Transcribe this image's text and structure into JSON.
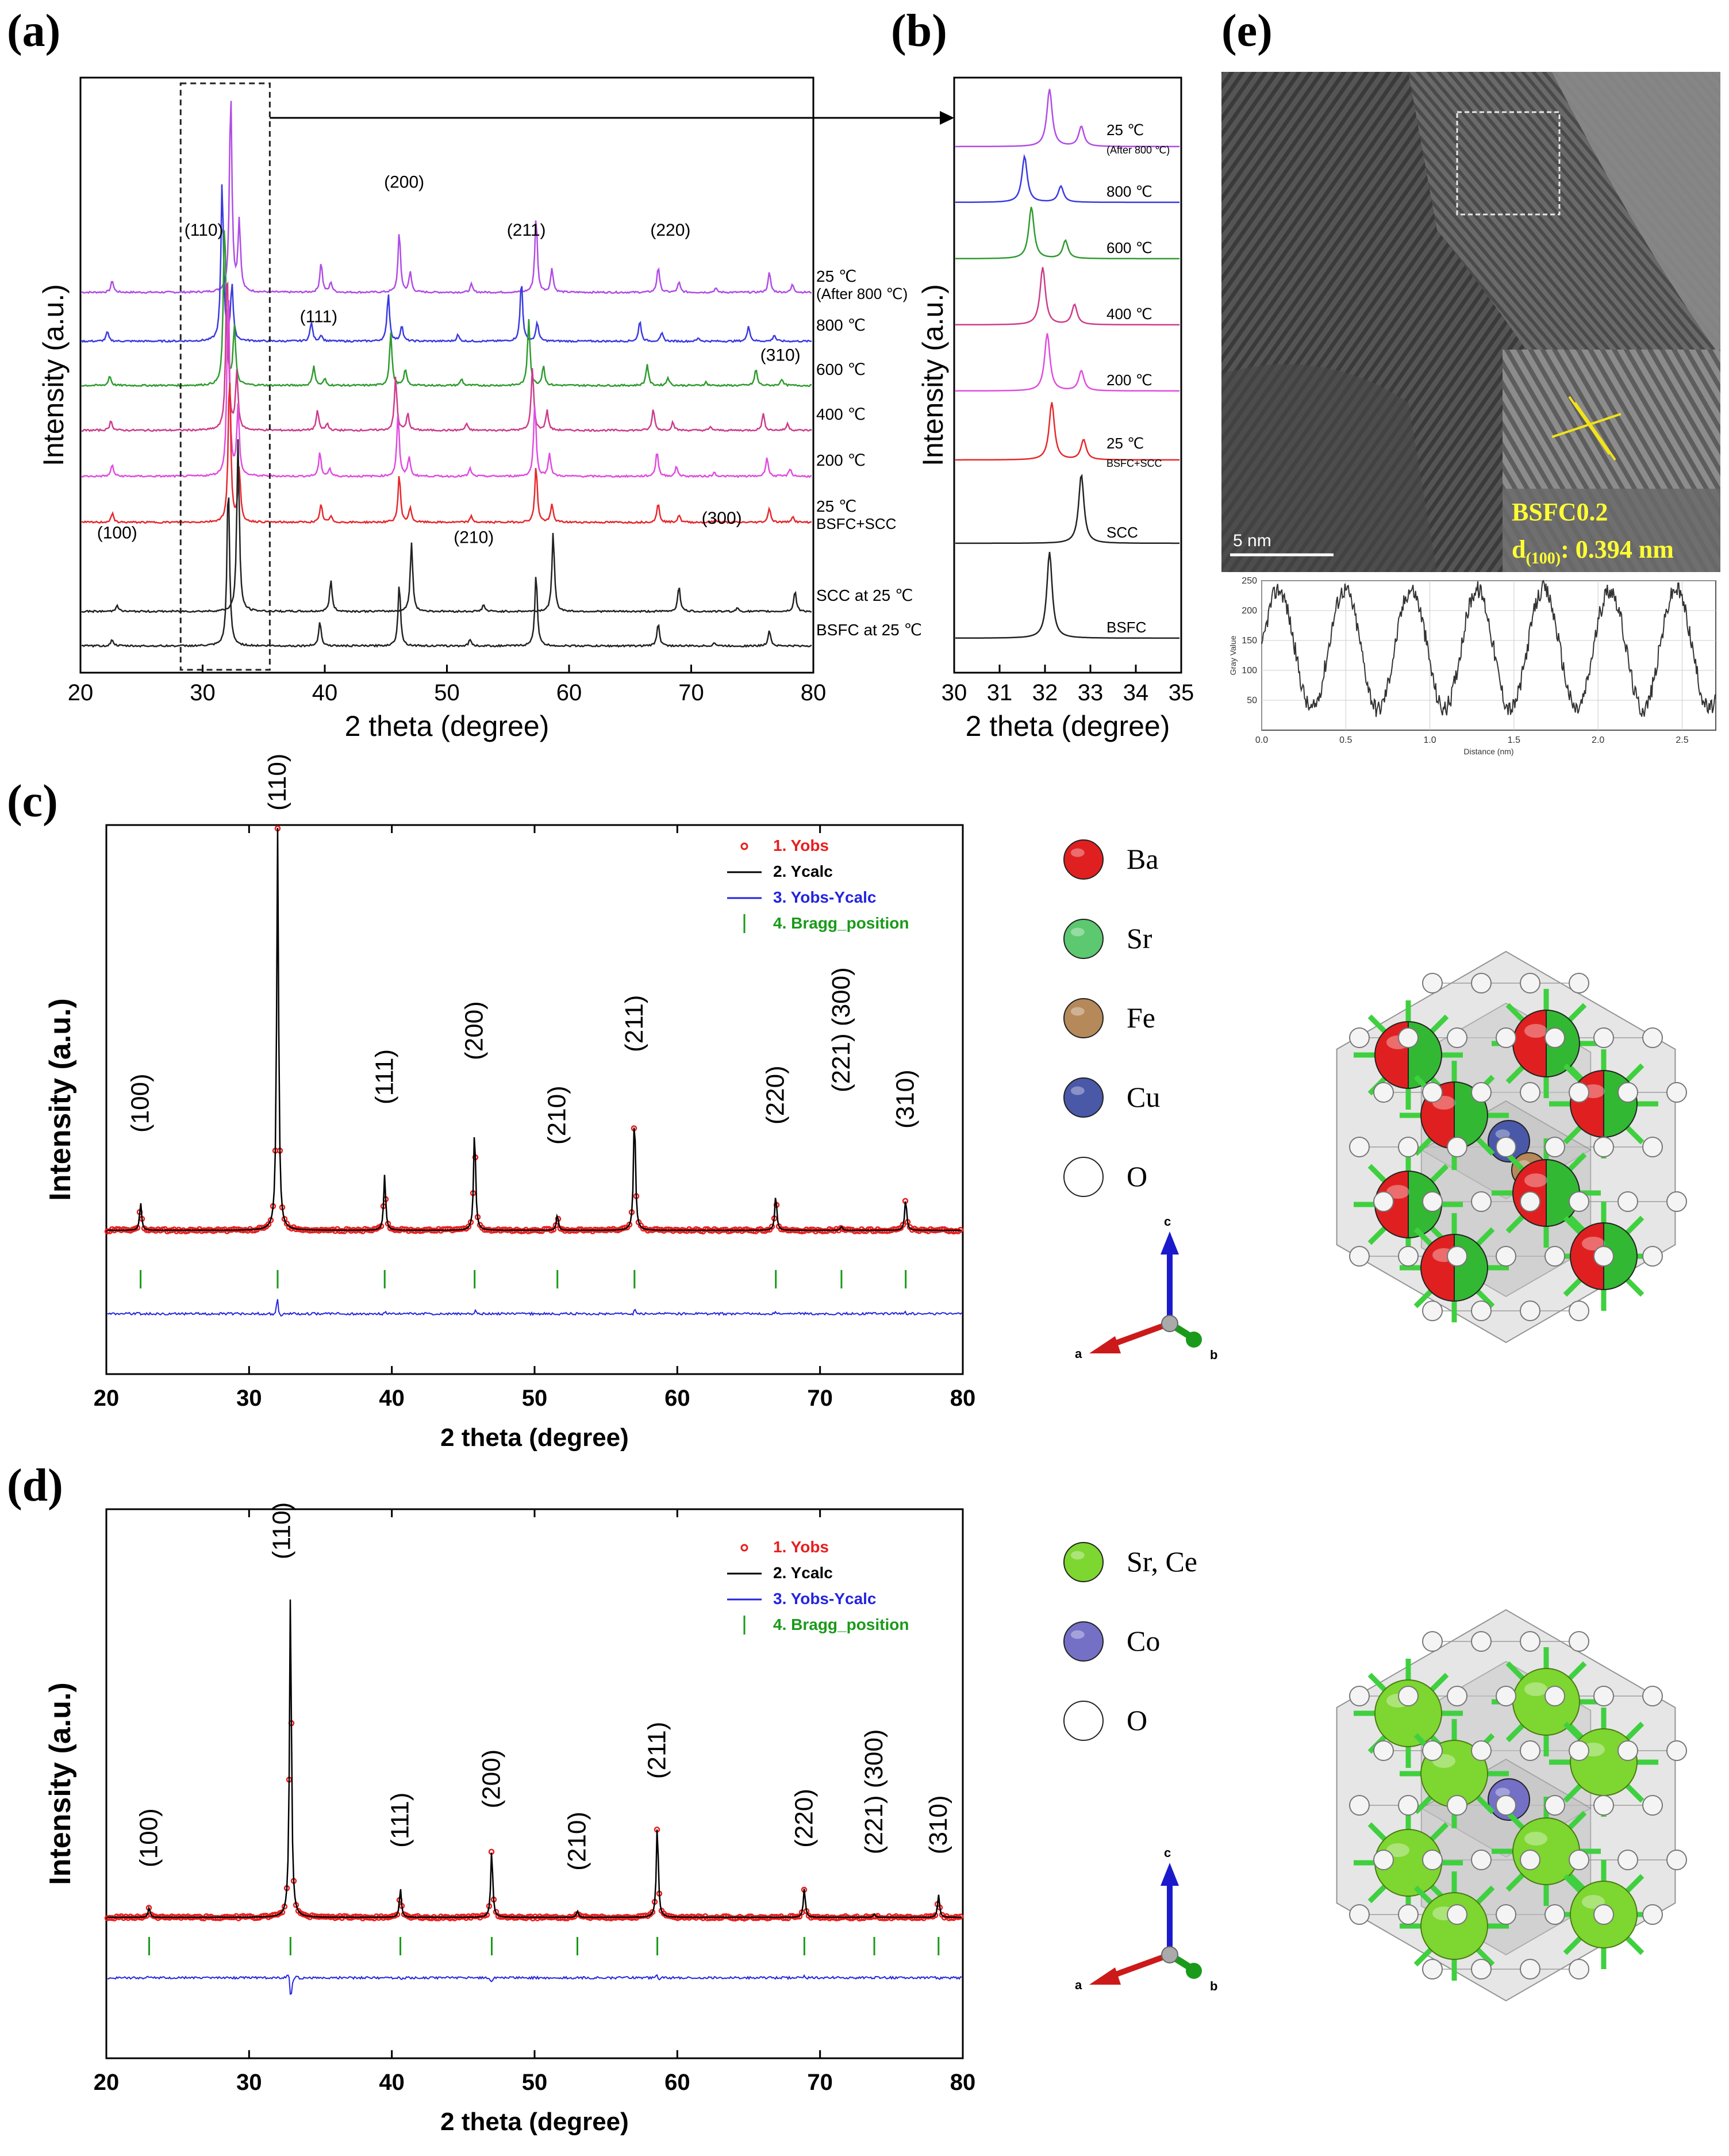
{
  "panel_labels": {
    "a": "(a)",
    "b": "(b)",
    "c": "(c)",
    "d": "(d)",
    "e": "(e)"
  },
  "colors": {
    "purple": "#b04ce6",
    "blue": "#3a3ae0",
    "green": "#2e9b2e",
    "magenta1": "#cc3c8a",
    "magenta2": "#e04ce0",
    "red": "#e6282c",
    "black": "#222222",
    "yobs": "#e81e1e",
    "ycalc": "#000000",
    "diff": "#2424e0",
    "bragg": "#1a9a1a",
    "ba": "#e02020",
    "sr": "#5cc870",
    "fe": "#b5895a",
    "cu": "#4a58a8",
    "o": "#ffffff",
    "srce": "#7ed630",
    "co": "#7470c6"
  },
  "chart_data": [
    {
      "id": "a",
      "type": "line",
      "xlabel": "2 theta (degree)",
      "ylabel": "Intensity (a.u.)",
      "xlim": [
        20,
        80
      ],
      "xticks": [
        "20",
        "30",
        "40",
        "50",
        "60",
        "70",
        "80"
      ],
      "series": [
        {
          "name": "25 ℃",
          "sub": "(After 800 ℃)",
          "color": "purple",
          "shift": 0,
          "peaks": [
            [
              22.6,
              0.06
            ],
            [
              32.3,
              1.0
            ],
            [
              33.0,
              0.35
            ],
            [
              39.7,
              0.15
            ],
            [
              40.5,
              0.05
            ],
            [
              46.1,
              0.3
            ],
            [
              47.0,
              0.1
            ],
            [
              52.0,
              0.04
            ],
            [
              57.3,
              0.38
            ],
            [
              58.6,
              0.12
            ],
            [
              67.3,
              0.13
            ],
            [
              69.0,
              0.05
            ],
            [
              72.0,
              0.02
            ],
            [
              76.4,
              0.1
            ],
            [
              78.3,
              0.04
            ]
          ]
        },
        {
          "name": "800 ℃",
          "color": "blue",
          "shift": -1.1,
          "peaks": [
            [
              22.2,
              0.06
            ],
            [
              31.6,
              1.0
            ],
            [
              32.4,
              0.35
            ],
            [
              38.9,
              0.12
            ],
            [
              39.7,
              0.04
            ],
            [
              45.2,
              0.3
            ],
            [
              46.3,
              0.1
            ],
            [
              50.9,
              0.04
            ],
            [
              56.1,
              0.38
            ],
            [
              57.4,
              0.12
            ],
            [
              65.8,
              0.13
            ],
            [
              67.6,
              0.05
            ],
            [
              70.6,
              0.02
            ],
            [
              74.7,
              0.1
            ],
            [
              76.8,
              0.04
            ]
          ]
        },
        {
          "name": "600 ℃",
          "color": "green",
          "shift": -0.6,
          "peaks": [
            [
              22.4,
              0.06
            ],
            [
              31.8,
              1.0
            ],
            [
              32.6,
              0.35
            ],
            [
              39.1,
              0.12
            ],
            [
              40.0,
              0.04
            ],
            [
              45.4,
              0.32
            ],
            [
              46.6,
              0.1
            ],
            [
              51.2,
              0.04
            ],
            [
              56.7,
              0.4
            ],
            [
              57.9,
              0.12
            ],
            [
              66.4,
              0.13
            ],
            [
              68.1,
              0.05
            ],
            [
              71.2,
              0.02
            ],
            [
              75.3,
              0.1
            ],
            [
              77.4,
              0.04
            ]
          ]
        },
        {
          "name": "400 ℃",
          "color": "magenta1",
          "shift": -0.3,
          "peaks": [
            [
              22.5,
              0.06
            ],
            [
              32.0,
              1.0
            ],
            [
              32.8,
              0.35
            ],
            [
              39.4,
              0.12
            ],
            [
              40.2,
              0.04
            ],
            [
              45.8,
              0.32
            ],
            [
              46.8,
              0.1
            ],
            [
              51.6,
              0.04
            ],
            [
              57.0,
              0.38
            ],
            [
              58.2,
              0.12
            ],
            [
              66.9,
              0.13
            ],
            [
              68.5,
              0.05
            ],
            [
              71.6,
              0.02
            ],
            [
              75.9,
              0.1
            ],
            [
              77.9,
              0.04
            ]
          ]
        },
        {
          "name": "200 ℃",
          "color": "magenta2",
          "shift": -0.15,
          "peaks": [
            [
              22.6,
              0.06
            ],
            [
              32.1,
              1.0
            ],
            [
              32.9,
              0.35
            ],
            [
              39.6,
              0.12
            ],
            [
              40.4,
              0.04
            ],
            [
              46.0,
              0.32
            ],
            [
              46.9,
              0.1
            ],
            [
              51.9,
              0.04
            ],
            [
              57.2,
              0.38
            ],
            [
              58.4,
              0.12
            ],
            [
              67.2,
              0.13
            ],
            [
              68.8,
              0.05
            ],
            [
              71.9,
              0.02
            ],
            [
              76.2,
              0.1
            ],
            [
              78.1,
              0.04
            ]
          ]
        },
        {
          "name": "25 ℃",
          "sub": "BSFC+SCC",
          "color": "red",
          "shift": 0,
          "peaks": [
            [
              22.6,
              0.06
            ],
            [
              32.2,
              1.0
            ],
            [
              33.0,
              0.35
            ],
            [
              39.7,
              0.12
            ],
            [
              40.5,
              0.04
            ],
            [
              46.1,
              0.32
            ],
            [
              47.0,
              0.1
            ],
            [
              52.0,
              0.04
            ],
            [
              57.3,
              0.38
            ],
            [
              58.6,
              0.12
            ],
            [
              67.3,
              0.13
            ],
            [
              69.0,
              0.05
            ],
            [
              72.0,
              0.02
            ],
            [
              76.4,
              0.1
            ],
            [
              78.3,
              0.04
            ]
          ]
        },
        {
          "name": "SCC at 25 ℃",
          "color": "black",
          "shift": 0,
          "peaks": [
            [
              23.0,
              0.04
            ],
            [
              32.9,
              1.0
            ],
            [
              40.5,
              0.18
            ],
            [
              47.1,
              0.4
            ],
            [
              53.0,
              0.04
            ],
            [
              58.7,
              0.46
            ],
            [
              69.0,
              0.15
            ],
            [
              73.8,
              0.02
            ],
            [
              78.5,
              0.12
            ]
          ]
        },
        {
          "name": "BSFC at 25 ℃",
          "color": "black",
          "shift": 0,
          "peaks": [
            [
              22.6,
              0.04
            ],
            [
              32.1,
              1.0
            ],
            [
              39.6,
              0.15
            ],
            [
              46.1,
              0.38
            ],
            [
              51.9,
              0.04
            ],
            [
              57.3,
              0.44
            ],
            [
              67.3,
              0.14
            ],
            [
              71.9,
              0.02
            ],
            [
              76.4,
              0.1
            ]
          ]
        }
      ],
      "peak_labels": [
        {
          "text": "(100)",
          "x": 23.0,
          "level": 0.25
        },
        {
          "text": "(110)",
          "x": 30.1,
          "level": 0.88
        },
        {
          "text": "(111)",
          "x": 39.5,
          "level": 0.7
        },
        {
          "text": "(200)",
          "x": 46.5,
          "level": 0.98
        },
        {
          "text": "(210)",
          "x": 52.2,
          "level": 0.24
        },
        {
          "text": "(211)",
          "x": 56.5,
          "level": 0.88
        },
        {
          "text": "(220)",
          "x": 68.3,
          "level": 0.88
        },
        {
          "text": "(300)",
          "x": 72.5,
          "level": 0.28
        },
        {
          "text": "(310)",
          "x": 77.3,
          "level": 0.62
        }
      ]
    },
    {
      "id": "b",
      "type": "line",
      "xlabel": "2 theta (degree)",
      "ylabel": "Intensity (a.u.)",
      "xlim": [
        30,
        35
      ],
      "xticks": [
        "30",
        "31",
        "32",
        "33",
        "34",
        "35"
      ],
      "series": [
        {
          "name": "25 ℃",
          "sub": "(After 800 ℃)",
          "color": "purple",
          "peaks": [
            [
              32.1,
              1.0
            ],
            [
              32.8,
              0.35
            ]
          ]
        },
        {
          "name": "800 ℃",
          "color": "blue",
          "peaks": [
            [
              31.55,
              1.0
            ],
            [
              32.35,
              0.35
            ]
          ]
        },
        {
          "name": "600 ℃",
          "color": "green",
          "peaks": [
            [
              31.7,
              1.0
            ],
            [
              32.45,
              0.35
            ]
          ]
        },
        {
          "name": "400 ℃",
          "color": "magenta1",
          "peaks": [
            [
              31.95,
              1.0
            ],
            [
              32.65,
              0.35
            ]
          ]
        },
        {
          "name": "200 ℃",
          "color": "magenta2",
          "peaks": [
            [
              32.05,
              1.0
            ],
            [
              32.8,
              0.35
            ]
          ]
        },
        {
          "name": "25 ℃",
          "sub": "BSFC+SCC",
          "color": "red",
          "peaks": [
            [
              32.15,
              1.0
            ],
            [
              32.85,
              0.35
            ]
          ]
        },
        {
          "name": "SCC",
          "color": "black",
          "peaks": [
            [
              32.8,
              1.0
            ]
          ]
        },
        {
          "name": "BSFC",
          "color": "black",
          "peaks": [
            [
              32.1,
              1.0
            ]
          ]
        }
      ]
    },
    {
      "id": "c",
      "type": "line",
      "xlabel": "2 theta (degree)",
      "ylabel": "Intensity (a.u.)",
      "xlim": [
        20,
        80
      ],
      "xticks": [
        "20",
        "30",
        "40",
        "50",
        "60",
        "70",
        "80"
      ],
      "legend": [
        "1. Yobs",
        "2. Ycalc",
        "3. Yobs-Ycalc",
        "4. Bragg_position"
      ],
      "peaks": [
        [
          22.4,
          0.07
        ],
        [
          32.0,
          1.0
        ],
        [
          39.5,
          0.14
        ],
        [
          45.8,
          0.26
        ],
        [
          51.6,
          0.04
        ],
        [
          57.0,
          0.3
        ],
        [
          66.9,
          0.09
        ],
        [
          71.5,
          0.01
        ],
        [
          76.0,
          0.08
        ]
      ],
      "bragg": [
        22.4,
        32.0,
        39.5,
        45.8,
        51.6,
        57.0,
        66.9,
        71.5,
        76.0
      ],
      "peak_labels": [
        {
          "text": "(100)",
          "x": 22.4,
          "level": 0.2
        },
        {
          "text": "(110)",
          "x": 32.0,
          "level": 1.0
        },
        {
          "text": "(111)",
          "x": 39.5,
          "level": 0.27
        },
        {
          "text": "(200)",
          "x": 45.8,
          "level": 0.38
        },
        {
          "text": "(210)",
          "x": 51.6,
          "level": 0.17
        },
        {
          "text": "(211)",
          "x": 57.0,
          "level": 0.4
        },
        {
          "text": "(220)",
          "x": 66.9,
          "level": 0.22
        },
        {
          "text": "(221) (300)",
          "x": 71.5,
          "level": 0.3
        },
        {
          "text": "(310)",
          "x": 76.0,
          "level": 0.21
        }
      ]
    },
    {
      "id": "d",
      "type": "line",
      "xlabel": "2 theta (degree)",
      "ylabel": "Intensity (a.u.)",
      "xlim": [
        20,
        80
      ],
      "xticks": [
        "20",
        "30",
        "40",
        "50",
        "60",
        "70",
        "80"
      ],
      "legend": [
        "1. Yobs",
        "2. Ycalc",
        "3. Yobs-Ycalc",
        "4. Bragg_position"
      ],
      "peaks": [
        [
          23.0,
          0.03
        ],
        [
          32.9,
          1.0
        ],
        [
          40.6,
          0.09
        ],
        [
          47.0,
          0.21
        ],
        [
          53.0,
          0.02
        ],
        [
          58.6,
          0.29
        ],
        [
          68.9,
          0.09
        ],
        [
          73.8,
          0.01
        ],
        [
          78.3,
          0.07
        ]
      ],
      "bragg": [
        23.0,
        32.9,
        40.6,
        47.0,
        53.0,
        58.6,
        68.9,
        73.8,
        78.3
      ],
      "peak_labels": [
        {
          "text": "(100)",
          "x": 23.0,
          "level": 0.1
        },
        {
          "text": "(110)",
          "x": 32.3,
          "level": 1.04
        },
        {
          "text": "(111)",
          "x": 40.6,
          "level": 0.16
        },
        {
          "text": "(200)",
          "x": 47.0,
          "level": 0.28
        },
        {
          "text": "(210)",
          "x": 53.0,
          "level": 0.09
        },
        {
          "text": "(211)",
          "x": 58.6,
          "level": 0.37
        },
        {
          "text": "(220)",
          "x": 68.9,
          "level": 0.16
        },
        {
          "text": "(221) (300)",
          "x": 73.8,
          "level": 0.14
        },
        {
          "text": "(310)",
          "x": 78.3,
          "level": 0.14
        }
      ]
    },
    {
      "id": "e",
      "type": "line",
      "xlabel": "Distance (nm)",
      "ylabel": "Gray Value",
      "xlim": [
        0,
        2.7
      ],
      "ylim": [
        0,
        250
      ],
      "xticks": [
        "0.0",
        "0.5",
        "1.0",
        "1.5",
        "2.0",
        "2.5"
      ],
      "yticks": [
        "50",
        "100",
        "150",
        "200",
        "250"
      ],
      "periods_nm": 0.394
    }
  ],
  "tem": {
    "scale": "5 nm",
    "sample": "BSFC0.2",
    "d_spacing_prefix": "d",
    "d_spacing_sub": "(100)",
    "d_spacing_value": ": 0.394 nm"
  },
  "legend_c": [
    {
      "label": "Ba",
      "color": "ba"
    },
    {
      "label": "Sr",
      "color": "sr"
    },
    {
      "label": "Fe",
      "color": "fe"
    },
    {
      "label": "Cu",
      "color": "cu"
    },
    {
      "label": "O",
      "color": "o"
    }
  ],
  "legend_d": [
    {
      "label": "Sr, Ce",
      "color": "srce"
    },
    {
      "label": "Co",
      "color": "co"
    },
    {
      "label": "O",
      "color": "o"
    }
  ],
  "axes_labels": {
    "a": "a",
    "b": "b",
    "c": "c"
  }
}
